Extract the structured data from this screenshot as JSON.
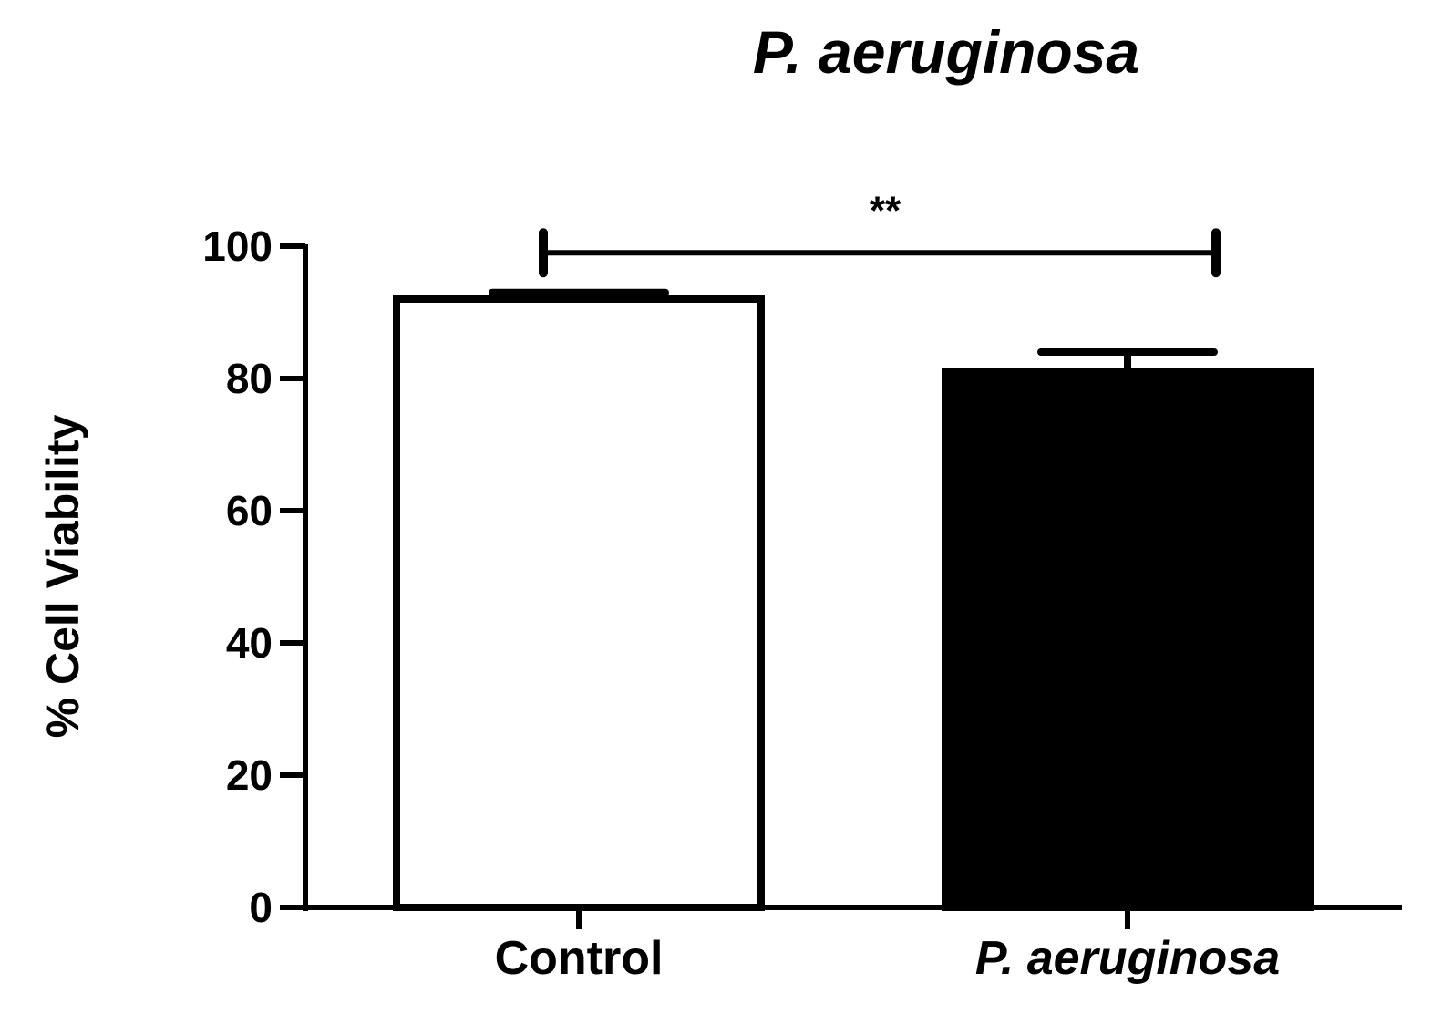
{
  "chart_data": {
    "type": "bar",
    "title": "P. aeruginosa",
    "ylabel": "% Cell Viability",
    "xlabel": "",
    "ylim": [
      0,
      100
    ],
    "yticks": [
      0,
      20,
      40,
      60,
      80,
      100
    ],
    "grid": false,
    "categories": [
      "Control",
      "P. aeruginosa"
    ],
    "values": [
      92,
      81
    ],
    "errors": [
      1,
      3
    ],
    "bar_fills": [
      "#ffffff",
      "#000000"
    ],
    "category_italic": [
      false,
      true
    ],
    "significance": {
      "label": "**",
      "from_category": 0,
      "to_category": 1,
      "y_value": 99
    }
  }
}
